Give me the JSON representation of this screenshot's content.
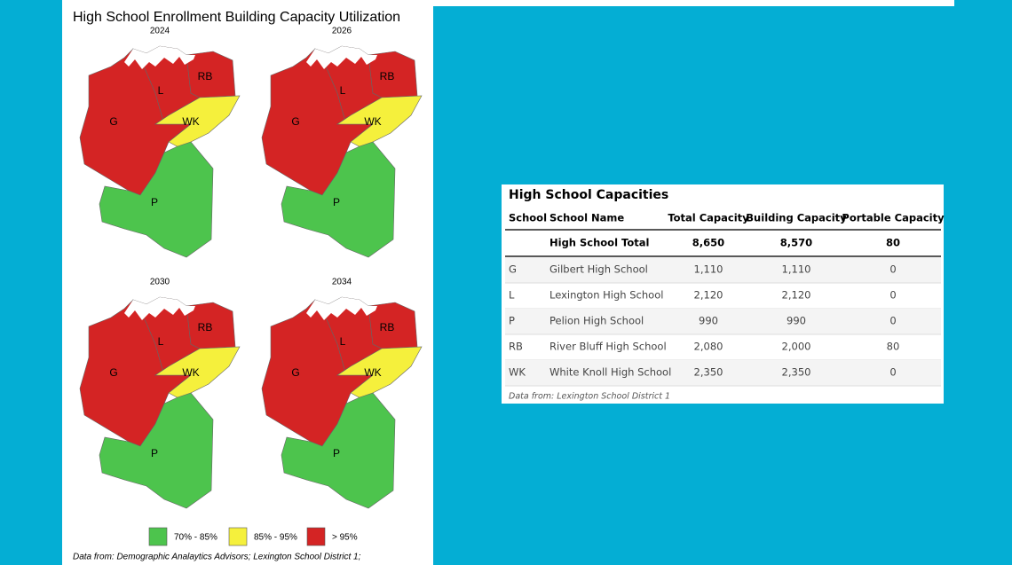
{
  "map_panel": {
    "title": "High School Enrollment Building Capacity Utilization",
    "maps": [
      {
        "year": "2024",
        "regions": [
          {
            "label": "G",
            "color": "#d42424"
          },
          {
            "label": "L",
            "color": "#d42424"
          },
          {
            "label": "RB",
            "color": "#d42424"
          },
          {
            "label": "WK",
            "color": "#f5f03c"
          },
          {
            "label": "P",
            "color": "#4dc44d"
          }
        ]
      },
      {
        "year": "2026",
        "regions": [
          {
            "label": "G",
            "color": "#d42424"
          },
          {
            "label": "L",
            "color": "#d42424"
          },
          {
            "label": "RB",
            "color": "#d42424"
          },
          {
            "label": "WK",
            "color": "#f5f03c"
          },
          {
            "label": "P",
            "color": "#4dc44d"
          }
        ]
      },
      {
        "year": "2030",
        "regions": [
          {
            "label": "G",
            "color": "#d42424"
          },
          {
            "label": "L",
            "color": "#d42424"
          },
          {
            "label": "RB",
            "color": "#d42424"
          },
          {
            "label": "WK",
            "color": "#f5f03c"
          },
          {
            "label": "P",
            "color": "#4dc44d"
          }
        ]
      },
      {
        "year": "2034",
        "regions": [
          {
            "label": "G",
            "color": "#d42424"
          },
          {
            "label": "L",
            "color": "#d42424"
          },
          {
            "label": "RB",
            "color": "#d42424"
          },
          {
            "label": "WK",
            "color": "#f5f03c"
          },
          {
            "label": "P",
            "color": "#4dc44d"
          }
        ]
      }
    ],
    "legend": [
      {
        "label": "70% - 85%",
        "color": "#4dc44d"
      },
      {
        "label": "85% - 95%",
        "color": "#f5f03c"
      },
      {
        "label": "> 95%",
        "color": "#d42424"
      }
    ],
    "source": "Data from: Demographic Analaytics Advisors; Lexington School District 1;"
  },
  "table": {
    "title": "High School Capacities",
    "header": [
      "School",
      "School Name",
      "Total Capacity",
      "Building Capacity",
      "Portable Capacity"
    ],
    "total_row": [
      "",
      "High School Total",
      "8,650",
      "8,570",
      "80"
    ],
    "rows": [
      [
        "G",
        "Gilbert High School",
        "1,110",
        "1,110",
        "0"
      ],
      [
        "L",
        "Lexington High School",
        "2,120",
        "2,120",
        "0"
      ],
      [
        "P",
        "Pelion High School",
        "990",
        "990",
        "0"
      ],
      [
        "RB",
        "River Bluff High School",
        "2,080",
        "2,000",
        "80"
      ],
      [
        "WK",
        "White Knoll High School",
        "2,350",
        "2,350",
        "0"
      ]
    ],
    "footnote": "Data from: Lexington School District 1"
  }
}
